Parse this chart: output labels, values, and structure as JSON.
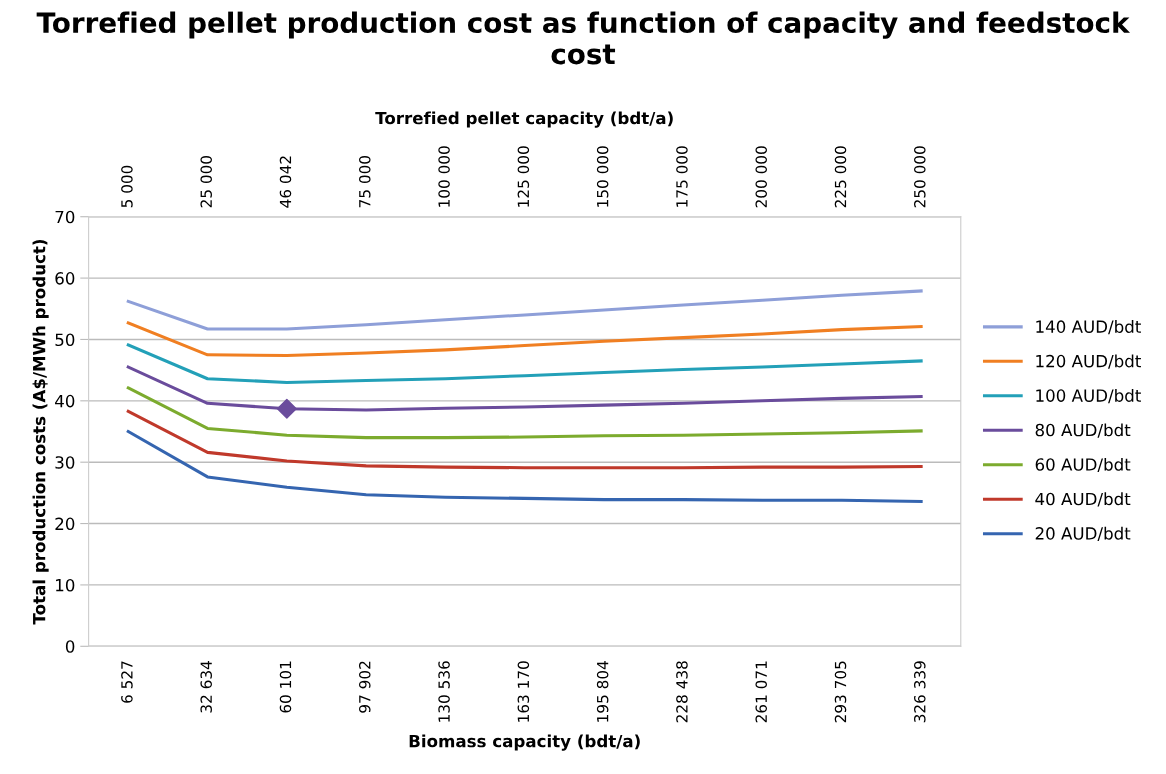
{
  "chart_data": {
    "type": "line",
    "title": "Torrefied pellet production cost as function of capacity and feedstock cost",
    "xlabel": "Biomass capacity (bdt/a)",
    "x2label": "Torrefied pellet capacity (bdt/a)",
    "ylabel": "Total production costs (A$/MWh product)",
    "categories": [
      "6 527",
      "32 634",
      "60 101",
      "97 902",
      "130 536",
      "163 170",
      "195 804",
      "228 438",
      "261 071",
      "293 705",
      "326 339"
    ],
    "annotations": [
      "5 000",
      "25 000",
      "46 042",
      "75 000",
      "100 000",
      "125 000",
      "150 000",
      "175 000",
      "200 000",
      "225 000",
      "250 000"
    ],
    "ylim": [
      0,
      70
    ],
    "yticks": [
      0,
      10,
      20,
      30,
      40,
      50,
      60,
      70
    ],
    "grid": "y",
    "legend": "right",
    "marker": "none",
    "line_style": "solid",
    "series": [
      {
        "name": "140 AUD/bdt",
        "color": "#8e9fd8",
        "values": [
          56.2,
          51.7,
          51.7,
          52.4,
          53.2,
          54.0,
          54.8,
          55.6,
          56.4,
          57.2,
          57.9
        ]
      },
      {
        "name": "120 AUD/bdt",
        "color": "#f07f22",
        "values": [
          52.7,
          47.5,
          47.4,
          47.8,
          48.3,
          49.0,
          49.7,
          50.3,
          50.9,
          51.6,
          52.1
        ]
      },
      {
        "name": "100 AUD/bdt",
        "color": "#23a0b8",
        "values": [
          49.1,
          43.6,
          43.0,
          43.3,
          43.6,
          44.1,
          44.6,
          45.1,
          45.5,
          46.0,
          46.5
        ]
      },
      {
        "name": "80 AUD/bdt",
        "color": "#6a4c9c",
        "values": [
          45.5,
          39.6,
          38.7,
          38.5,
          38.8,
          39.0,
          39.3,
          39.6,
          40.0,
          40.4,
          40.7
        ]
      },
      {
        "name": "60 AUD/bdt",
        "color": "#7cab2e",
        "values": [
          42.1,
          35.5,
          34.4,
          34.0,
          34.0,
          34.1,
          34.3,
          34.4,
          34.6,
          34.8,
          35.1
        ]
      },
      {
        "name": "40 AUD/bdt",
        "color": "#c0392b",
        "values": [
          38.3,
          31.6,
          30.2,
          29.4,
          29.2,
          29.1,
          29.1,
          29.1,
          29.2,
          29.2,
          29.3
        ]
      },
      {
        "name": "20 AUD/bdt",
        "color": "#3565b0",
        "values": [
          35.0,
          27.6,
          25.9,
          24.7,
          24.3,
          24.1,
          23.9,
          23.9,
          23.8,
          23.8,
          23.6
        ]
      },
      {
        "type": "scatter",
        "marker": "diamond",
        "color": "#6a4c9c",
        "x": [
          "60 101"
        ],
        "values": [
          38.7
        ]
      }
    ]
  }
}
